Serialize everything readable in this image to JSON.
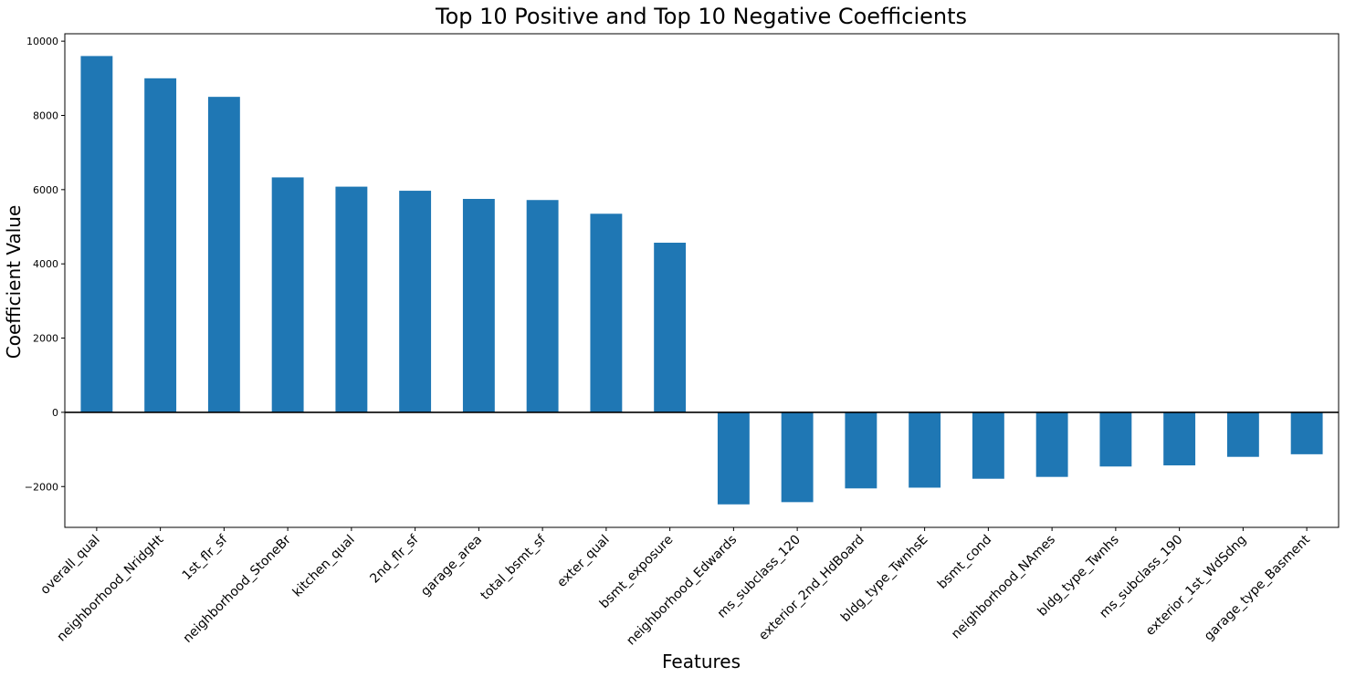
{
  "chart_data": {
    "type": "bar",
    "title": "Top 10 Positive and Top 10 Negative Coefficients",
    "xlabel": "Features",
    "ylabel": "Coefficient Value",
    "ylim": [
      -3100,
      10200
    ],
    "yticks": [
      -2000,
      0,
      2000,
      4000,
      6000,
      8000,
      10000
    ],
    "ytick_labels": [
      "−2000",
      "0",
      "2000",
      "4000",
      "6000",
      "8000",
      "10000"
    ],
    "zero_line": true,
    "grid": false,
    "bar_color": "#1f77b4",
    "categories": [
      "overall_qual",
      "neighborhood_NridgHt",
      "1st_flr_sf",
      "neighborhood_StoneBr",
      "kitchen_qual",
      "2nd_flr_sf",
      "garage_area",
      "total_bsmt_sf",
      "exter_qual",
      "bsmt_exposure",
      "neighborhood_Edwards",
      "ms_subclass_120",
      "exterior_2nd_HdBoard",
      "bldg_type_TwnhsE",
      "bsmt_cond",
      "neighborhood_NAmes",
      "bldg_type_Twnhs",
      "ms_subclass_190",
      "exterior_1st_WdSdng",
      "garage_type_Basment"
    ],
    "values": [
      9600,
      9000,
      8500,
      6330,
      6080,
      5970,
      5750,
      5720,
      5350,
      4570,
      -2480,
      -2420,
      -2050,
      -2030,
      -1790,
      -1740,
      -1460,
      -1430,
      -1200,
      -1130
    ]
  }
}
